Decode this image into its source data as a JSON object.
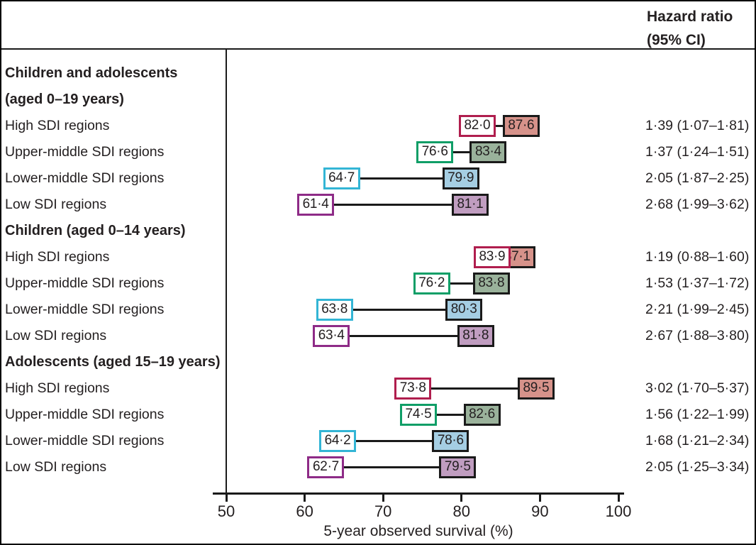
{
  "figure": {
    "hr_header_line1": "Hazard ratio",
    "hr_header_line2": "(95% CI)"
  },
  "colors": {
    "high_sdi": {
      "outline": "#b01e4e",
      "fill": "#d6928a"
    },
    "upper_middle_sdi": {
      "outline": "#0f9e67",
      "fill": "#9ab29b"
    },
    "lower_middle_sdi": {
      "outline": "#33b5d5",
      "fill": "#a5cee3"
    },
    "low_sdi": {
      "outline": "#8e2b87",
      "fill": "#c09dc0"
    },
    "line": "#1a1a1a",
    "text": "#231f20"
  },
  "chart_data": {
    "type": "dumbbell",
    "xlabel": "5-year observed survival (%)",
    "xlim": [
      50,
      100
    ],
    "x_ticks": [
      50,
      60,
      70,
      80,
      90,
      100
    ],
    "right_column_header": "Hazard ratio (95% CI)",
    "groups": [
      {
        "header_lines": [
          "Children and adolescents",
          "(aged 0–19 years)"
        ],
        "rows": [
          {
            "label": "High SDI regions",
            "color": "high_sdi",
            "start": 82.0,
            "end": 87.6,
            "start_text": "82·0",
            "end_text": "87·6",
            "hr": 1.39,
            "ci": [
              1.07,
              1.81
            ],
            "hr_text": "1·39 (1·07–1·81)"
          },
          {
            "label": "Upper-middle SDI regions",
            "color": "upper_middle_sdi",
            "start": 76.6,
            "end": 83.4,
            "start_text": "76·6",
            "end_text": "83·4",
            "hr": 1.37,
            "ci": [
              1.24,
              1.51
            ],
            "hr_text": "1·37 (1·24–1·51)"
          },
          {
            "label": "Lower-middle SDI regions",
            "color": "lower_middle_sdi",
            "start": 64.7,
            "end": 79.9,
            "start_text": "64·7",
            "end_text": "79·9",
            "hr": 2.05,
            "ci": [
              1.87,
              2.25
            ],
            "hr_text": "2·05 (1·87–2·25)"
          },
          {
            "label": "Low SDI regions",
            "color": "low_sdi",
            "start": 61.4,
            "end": 81.1,
            "start_text": "61·4",
            "end_text": "81·1",
            "hr": 2.68,
            "ci": [
              1.99,
              3.62
            ],
            "hr_text": "2·68 (1·99–3·62)"
          }
        ]
      },
      {
        "header_lines": [
          "Children (aged 0–14 years)"
        ],
        "rows": [
          {
            "label": "High SDI regions",
            "color": "high_sdi",
            "start": 83.9,
            "end": 87.1,
            "start_text": "83·9",
            "end_text": "87·1",
            "hr": 1.19,
            "ci": [
              0.88,
              1.6
            ],
            "hr_text": "1·19 (0·88–1·60)"
          },
          {
            "label": "Upper-middle SDI regions",
            "color": "upper_middle_sdi",
            "start": 76.2,
            "end": 83.8,
            "start_text": "76·2",
            "end_text": "83·8",
            "hr": 1.53,
            "ci": [
              1.37,
              1.72
            ],
            "hr_text": "1·53 (1·37–1·72)"
          },
          {
            "label": "Lower-middle SDI regions",
            "color": "lower_middle_sdi",
            "start": 63.8,
            "end": 80.3,
            "start_text": "63·8",
            "end_text": "80·3",
            "hr": 2.21,
            "ci": [
              1.99,
              2.45
            ],
            "hr_text": "2·21 (1·99–2·45)"
          },
          {
            "label": "Low SDI regions",
            "color": "low_sdi",
            "start": 63.4,
            "end": 81.8,
            "start_text": "63·4",
            "end_text": "81·8",
            "hr": 2.67,
            "ci": [
              1.88,
              3.8
            ],
            "hr_text": "2·67 (1·88–3·80)"
          }
        ]
      },
      {
        "header_lines": [
          "Adolescents (aged 15–19 years)"
        ],
        "rows": [
          {
            "label": "High SDI regions",
            "color": "high_sdi",
            "start": 73.8,
            "end": 89.5,
            "start_text": "73·8",
            "end_text": "89·5",
            "hr": 3.02,
            "ci": [
              1.7,
              5.37
            ],
            "hr_text": "3·02 (1·70–5·37)"
          },
          {
            "label": "Upper-middle SDI regions",
            "color": "upper_middle_sdi",
            "start": 74.5,
            "end": 82.6,
            "start_text": "74·5",
            "end_text": "82·6",
            "hr": 1.56,
            "ci": [
              1.22,
              1.99
            ],
            "hr_text": "1·56 (1·22–1·99)"
          },
          {
            "label": "Lower-middle SDI regions",
            "color": "lower_middle_sdi",
            "start": 64.2,
            "end": 78.6,
            "start_text": "64·2",
            "end_text": "78·6",
            "hr": 1.68,
            "ci": [
              1.21,
              2.34
            ],
            "hr_text": "1·68 (1·21–2·34)"
          },
          {
            "label": "Low SDI regions",
            "color": "low_sdi",
            "start": 62.7,
            "end": 79.5,
            "start_text": "62·7",
            "end_text": "79·5",
            "hr": 2.05,
            "ci": [
              1.25,
              3.34
            ],
            "hr_text": "2·05 (1·25–3·34)"
          }
        ]
      }
    ]
  }
}
